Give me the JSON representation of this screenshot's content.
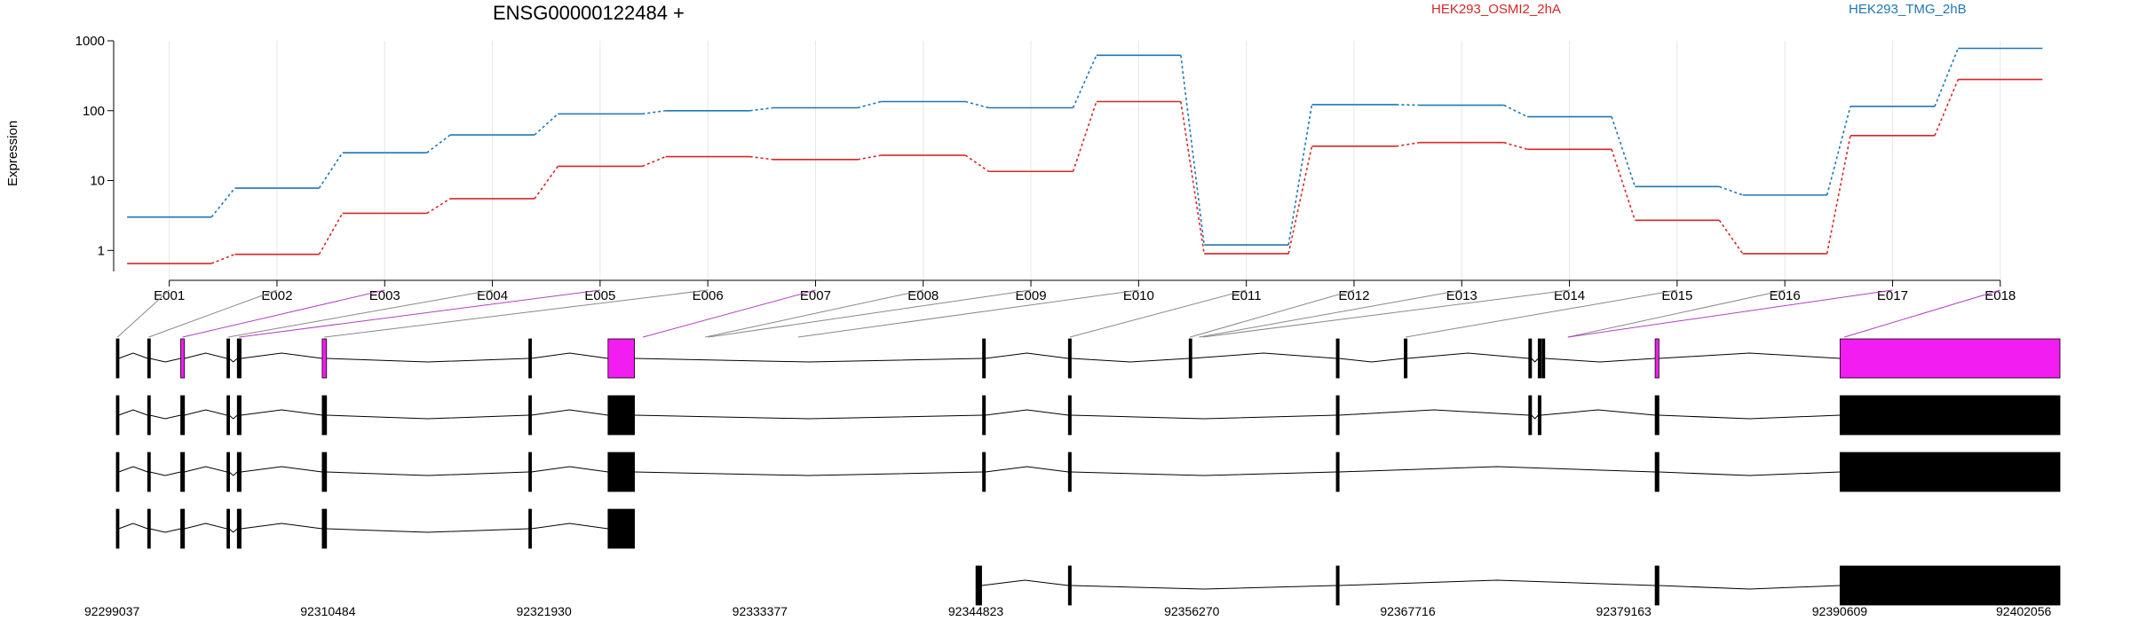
{
  "page": {
    "title": "ENSG00000122484 +"
  },
  "chart_data": {
    "type": "line",
    "title": "ENSG00000122484 +",
    "ylabel": "Expression",
    "yscale": "log",
    "ylim": [
      0.5,
      1000
    ],
    "yticks": [
      1,
      10,
      100,
      1000
    ],
    "ytick_labels": [
      "1",
      "10",
      "100",
      "1000"
    ],
    "categories": [
      "E001",
      "E002",
      "E003",
      "E004",
      "E005",
      "E006",
      "E007",
      "E008",
      "E009",
      "E010",
      "E011",
      "E012",
      "E013",
      "E014",
      "E015",
      "E016",
      "E017",
      "E018"
    ],
    "series": [
      {
        "name": "HEK293_OSMI2_2hA",
        "color": "#d62728",
        "values": [
          0.65,
          0.88,
          3.4,
          5.5,
          16,
          22,
          20,
          23,
          13.5,
          135,
          0.9,
          31,
          35,
          28,
          2.7,
          0.9,
          44,
          280
        ]
      },
      {
        "name": "HEK293_TMG_2hB",
        "color": "#1f77b4",
        "values": [
          3.0,
          7.8,
          25,
          45,
          90,
          100,
          110,
          135,
          110,
          620,
          1.2,
          122,
          120,
          82,
          8.2,
          6.2,
          115,
          780
        ]
      }
    ],
    "highlighted_exons": [
      "E003",
      "E005",
      "E007",
      "E017",
      "E018"
    ]
  },
  "genomic": {
    "coord_labels": [
      "92299037",
      "92310484",
      "92321930",
      "92333377",
      "92344823",
      "92356270",
      "92367716",
      "92379163",
      "92390609",
      "92402056"
    ],
    "gene_start": 92299037,
    "gene_end": 92402056,
    "exons": [
      {
        "id": "E001",
        "start": 92299037,
        "end": 92299160
      },
      {
        "id": "E002",
        "start": 92300700,
        "end": 92300810
      },
      {
        "id": "E003",
        "start": 92302450,
        "end": 92302650
      },
      {
        "id": "E004",
        "start": 92304900,
        "end": 92305020
      },
      {
        "id": "E005",
        "start": 92305450,
        "end": 92305650
      },
      {
        "id": "E006",
        "start": 92309950,
        "end": 92310180
      },
      {
        "id": "E007",
        "start": 92326200,
        "end": 92327700
      },
      {
        "id": "E008",
        "start": 92330200,
        "end": 92330300
      },
      {
        "id": "E009",
        "start": 92330350,
        "end": 92330500
      },
      {
        "id": "E010",
        "start": 92335100,
        "end": 92335250
      },
      {
        "id": "E011",
        "start": 92349500,
        "end": 92349650
      },
      {
        "id": "E012",
        "start": 92355900,
        "end": 92356000
      },
      {
        "id": "E013",
        "start": 92356350,
        "end": 92356500
      },
      {
        "id": "E014",
        "start": 92356550,
        "end": 92356700
      },
      {
        "id": "E015",
        "start": 92367300,
        "end": 92367450
      },
      {
        "id": "E016",
        "start": 92375900,
        "end": 92376050
      },
      {
        "id": "E017",
        "start": 92375900,
        "end": 92376050
      },
      {
        "id": "E018",
        "start": 92379200,
        "end": 92402056
      }
    ],
    "transcripts": [
      {
        "name": "gene-model",
        "highlight": true,
        "exons": [
          [
            92299037,
            92299160
          ],
          [
            92300700,
            92300810
          ],
          [
            92302450,
            92302650
          ],
          [
            92304900,
            92305020
          ],
          [
            92305450,
            92305650
          ],
          [
            92309950,
            92310180
          ],
          [
            92320900,
            92321030
          ],
          [
            92325100,
            92326500
          ],
          [
            92344950,
            92345100
          ],
          [
            92349500,
            92349650
          ],
          [
            92363700,
            92363850
          ],
          [
            92373900,
            92374050
          ],
          [
            92374400,
            92374550
          ],
          [
            92374600,
            92374750
          ],
          [
            92355900,
            92356000
          ],
          [
            92367300,
            92367450
          ],
          [
            92380600,
            92380800
          ],
          [
            92390400,
            92402056
          ]
        ]
      },
      {
        "name": "transcript-1",
        "highlight": false,
        "exons": [
          [
            92299037,
            92299160
          ],
          [
            92300700,
            92300810
          ],
          [
            92302450,
            92302650
          ],
          [
            92304900,
            92305020
          ],
          [
            92305450,
            92305650
          ],
          [
            92309950,
            92310180
          ],
          [
            92320900,
            92321030
          ],
          [
            92325100,
            92326500
          ],
          [
            92344950,
            92345100
          ],
          [
            92349500,
            92349650
          ],
          [
            92363700,
            92363850
          ],
          [
            92373900,
            92374050
          ],
          [
            92374400,
            92374550
          ],
          [
            92380600,
            92380800
          ],
          [
            92390400,
            92402056
          ]
        ]
      },
      {
        "name": "transcript-2",
        "highlight": false,
        "exons": [
          [
            92299037,
            92299160
          ],
          [
            92300700,
            92300810
          ],
          [
            92302450,
            92302650
          ],
          [
            92304900,
            92305020
          ],
          [
            92305450,
            92305650
          ],
          [
            92309950,
            92310180
          ],
          [
            92320900,
            92321030
          ],
          [
            92325100,
            92326500
          ],
          [
            92344950,
            92345100
          ],
          [
            92349500,
            92349650
          ],
          [
            92363700,
            92363850
          ],
          [
            92380600,
            92380800
          ],
          [
            92390400,
            92402056
          ]
        ]
      },
      {
        "name": "transcript-3",
        "highlight": false,
        "exons": [
          [
            92299037,
            92299160
          ],
          [
            92300700,
            92300810
          ],
          [
            92302450,
            92302650
          ],
          [
            92304900,
            92305020
          ],
          [
            92305450,
            92305650
          ],
          [
            92309950,
            92310180
          ],
          [
            92320900,
            92321030
          ],
          [
            92325100,
            92326500
          ]
        ]
      },
      {
        "name": "transcript-4",
        "highlight": false,
        "exons": [
          [
            92344600,
            92344900
          ],
          [
            92349500,
            92349650
          ],
          [
            92363700,
            92363850
          ],
          [
            92380600,
            92380800
          ],
          [
            92390400,
            92402056
          ]
        ]
      }
    ],
    "highlight_color": "#f21df0",
    "connector_highlight_color": "#b040c0"
  }
}
